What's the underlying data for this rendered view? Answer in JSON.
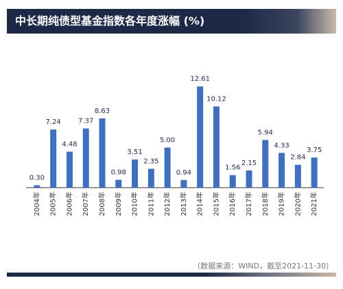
{
  "title": "中长期纯债型基金指数各年度涨幅 (%)",
  "source": "（数据来源：WIND，截至2021-11-30）",
  "colors": {
    "bar": "#3f6fbf",
    "label": "#1d2a47",
    "axis": "#333333"
  },
  "chart_data": {
    "type": "bar",
    "title": "中长期纯债型基金指数各年度涨幅 (%)",
    "categories": [
      "2004年",
      "2005年",
      "2006年",
      "2007年",
      "2008年",
      "2009年",
      "2010年",
      "2011年",
      "2012年",
      "2013年",
      "2014年",
      "2015年",
      "2016年",
      "2017年",
      "2018年",
      "2019年",
      "2020年",
      "2021年"
    ],
    "values": [
      0.3,
      7.24,
      4.48,
      7.37,
      8.63,
      0.98,
      3.51,
      2.35,
      5.0,
      0.94,
      12.61,
      10.12,
      1.56,
      2.15,
      5.94,
      4.33,
      2.84,
      3.75
    ],
    "value_labels": [
      "0.30",
      "7.24",
      "4.48",
      "7.37",
      "8.63",
      "0.98",
      "3.51",
      "2.35",
      "5.00",
      "0.94",
      "12.61",
      "10.12",
      "1.56",
      "2.15",
      "5.94",
      "4.33",
      "2.84",
      "3.75"
    ],
    "ylim": [
      0,
      13
    ],
    "grid": false,
    "legend": "none",
    "data_labels": true
  }
}
